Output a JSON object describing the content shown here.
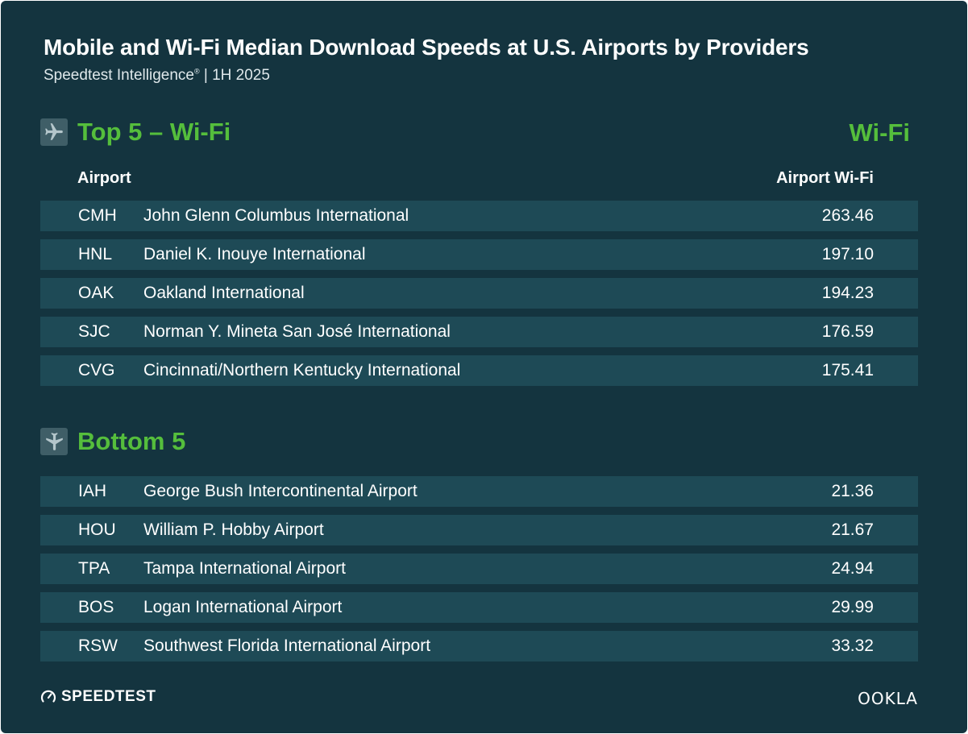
{
  "header": {
    "title": "Mobile and Wi-Fi Median Download Speeds at U.S. Airports by Providers",
    "subtitle_brand": "Speedtest Intelligence",
    "subtitle_mark": "®",
    "subtitle_rest": " | 1H 2025"
  },
  "top_section": {
    "title": "Top 5 – Wi-Fi",
    "column_tag": "Wi-Fi",
    "col_airport": "Airport",
    "col_value": "Airport Wi-Fi",
    "icon": "airplane-icon"
  },
  "bottom_section": {
    "title": "Bottom 5",
    "icon": "airplane-icon"
  },
  "chart_data": {
    "type": "table",
    "title": "Mobile and Wi-Fi Median Download Speeds at U.S. Airports by Providers",
    "columns": [
      "Airport",
      "Airport Wi-Fi"
    ],
    "top": [
      {
        "code": "CMH",
        "name": "John Glenn Columbus International",
        "value": "263.46"
      },
      {
        "code": "HNL",
        "name": "Daniel K. Inouye International",
        "value": "197.10"
      },
      {
        "code": "OAK",
        "name": "Oakland International",
        "value": "194.23"
      },
      {
        "code": "SJC",
        "name": "Norman Y. Mineta San José International",
        "value": "176.59"
      },
      {
        "code": "CVG",
        "name": "Cincinnati/Northern Kentucky International",
        "value": "175.41"
      }
    ],
    "bottom": [
      {
        "code": "IAH",
        "name": "George Bush Intercontinental Airport",
        "value": "21.36"
      },
      {
        "code": "HOU",
        "name": "William P. Hobby Airport",
        "value": "21.67"
      },
      {
        "code": "TPA",
        "name": "Tampa International Airport",
        "value": "24.94"
      },
      {
        "code": "BOS",
        "name": "Logan International Airport",
        "value": "29.99"
      },
      {
        "code": "RSW",
        "name": "Southwest Florida International Airport",
        "value": "33.32"
      }
    ]
  },
  "footer": {
    "speedtest_logo": "SPEEDTEST",
    "ookla_logo": "OOKLA"
  },
  "colors": {
    "background": "#14343f",
    "row": "#1e4a56",
    "accent": "#55be3c",
    "icon_box": "#3f5e67"
  }
}
